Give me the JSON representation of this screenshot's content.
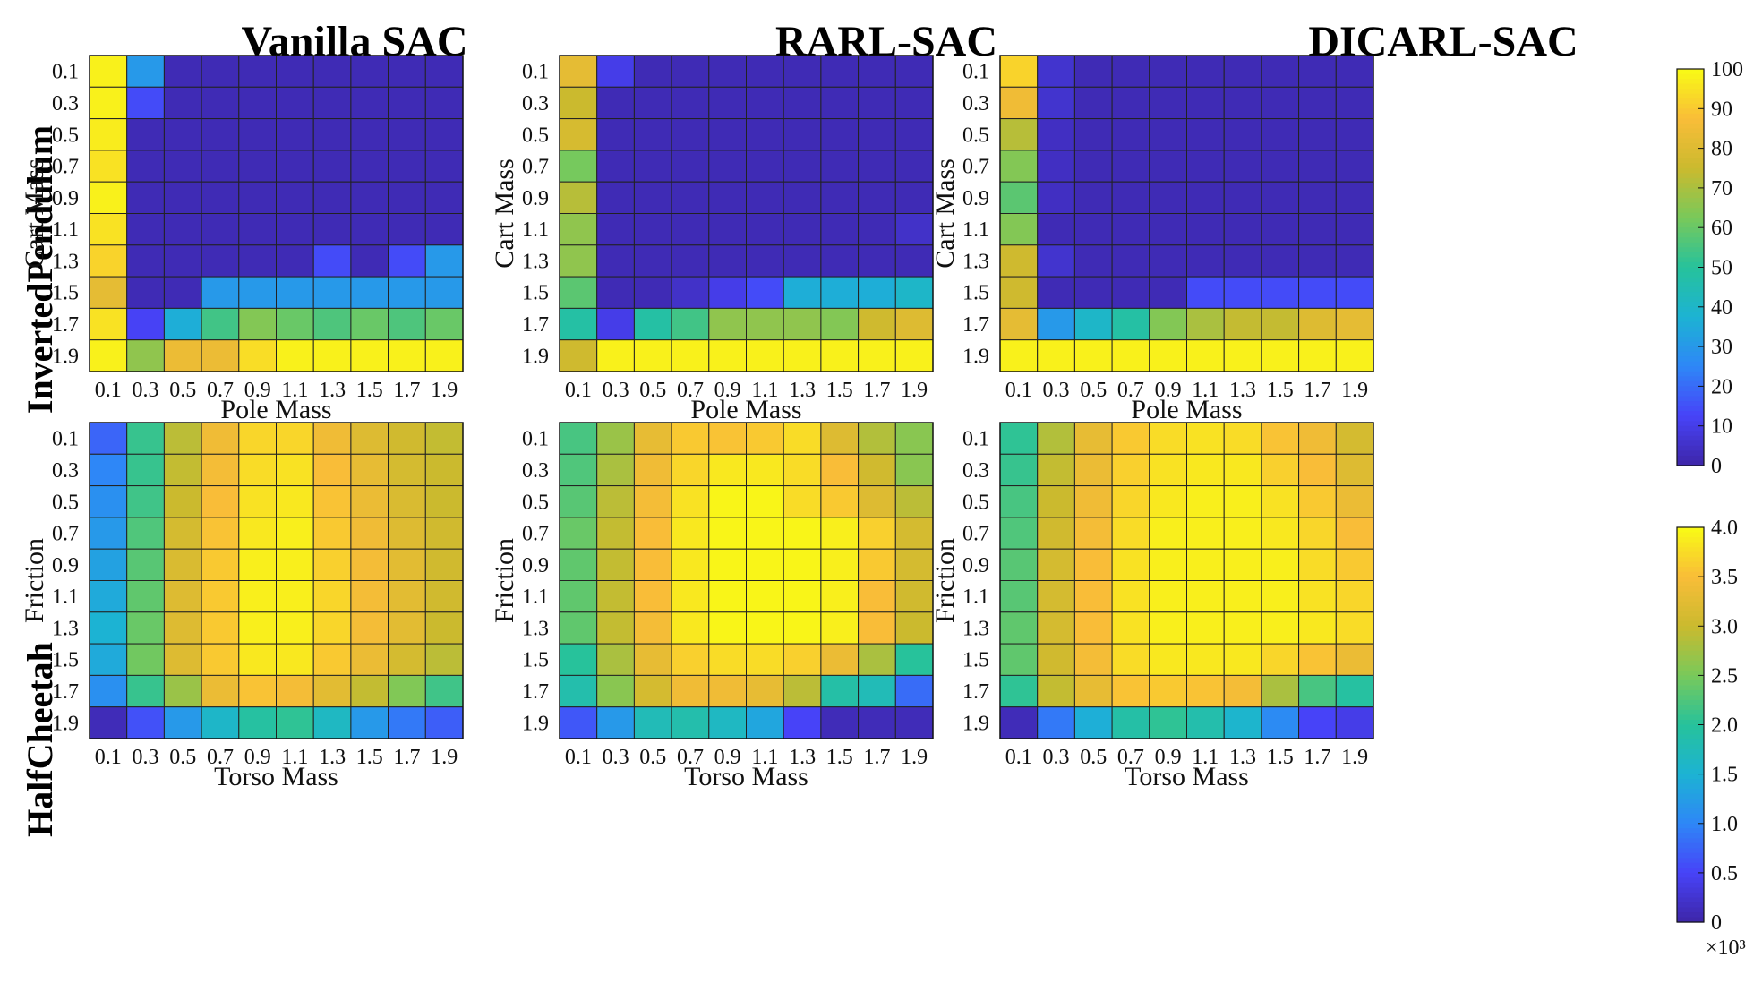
{
  "figure": {
    "row_labels": [
      "InvertedPendulum",
      "HalfCheetah"
    ],
    "column_titles": [
      "Vanilla SAC",
      "RARL-SAC",
      "DICARL-SAC"
    ]
  },
  "colormap": [
    "#3e26a8",
    "#4743f8",
    "#2e87f7",
    "#1cb3d3",
    "#27c29b",
    "#79c95a",
    "#cbba2e",
    "#f9bd38",
    "#f9fb15"
  ],
  "chart_data": [
    {
      "type": "heatmap",
      "row": "InvertedPendulum",
      "title": "Vanilla SAC",
      "x": [
        "0.1",
        "0.3",
        "0.5",
        "0.7",
        "0.9",
        "1.1",
        "1.3",
        "1.5",
        "1.7",
        "1.9"
      ],
      "y": [
        "0.1",
        "0.3",
        "0.5",
        "0.7",
        "0.9",
        "1.1",
        "1.3",
        "1.5",
        "1.7",
        "1.9"
      ],
      "xlabel": "Pole Mass",
      "ylabel": "Cart Mass",
      "clim": [
        0,
        100
      ],
      "z": [
        [
          98,
          30,
          2,
          2,
          2,
          2,
          2,
          2,
          2,
          2
        ],
        [
          98,
          14,
          2,
          2,
          2,
          2,
          2,
          2,
          2,
          2
        ],
        [
          97,
          2,
          2,
          2,
          2,
          2,
          2,
          2,
          2,
          2
        ],
        [
          95,
          2,
          2,
          2,
          2,
          2,
          2,
          2,
          2,
          2
        ],
        [
          98,
          2,
          2,
          2,
          2,
          2,
          2,
          2,
          2,
          2
        ],
        [
          95,
          2,
          2,
          2,
          2,
          2,
          2,
          2,
          2,
          2
        ],
        [
          92,
          2,
          2,
          2,
          2,
          2,
          14,
          2,
          14,
          30
        ],
        [
          82,
          2,
          2,
          30,
          30,
          30,
          30,
          30,
          30,
          30
        ],
        [
          95,
          12,
          36,
          54,
          64,
          60,
          56,
          60,
          56,
          60
        ],
        [
          98,
          66,
          84,
          84,
          94,
          98,
          98,
          98,
          98,
          98
        ]
      ]
    },
    {
      "type": "heatmap",
      "row": "InvertedPendulum",
      "title": "RARL-SAC",
      "x": [
        "0.1",
        "0.3",
        "0.5",
        "0.7",
        "0.9",
        "1.1",
        "1.3",
        "1.5",
        "1.7",
        "1.9"
      ],
      "y": [
        "0.1",
        "0.3",
        "0.5",
        "0.7",
        "0.9",
        "1.1",
        "1.3",
        "1.5",
        "1.7",
        "1.9"
      ],
      "xlabel": "Pole Mass",
      "ylabel": "Cart Mass",
      "clim": [
        0,
        100
      ],
      "z": [
        [
          82,
          10,
          2,
          2,
          2,
          2,
          2,
          2,
          2,
          2
        ],
        [
          75,
          2,
          2,
          2,
          2,
          2,
          2,
          2,
          2,
          2
        ],
        [
          78,
          2,
          2,
          2,
          2,
          2,
          2,
          2,
          2,
          2
        ],
        [
          62,
          2,
          2,
          2,
          2,
          2,
          2,
          2,
          2,
          2
        ],
        [
          72,
          2,
          2,
          2,
          2,
          2,
          2,
          2,
          2,
          2
        ],
        [
          66,
          2,
          2,
          2,
          2,
          2,
          2,
          2,
          2,
          5
        ],
        [
          66,
          2,
          2,
          2,
          2,
          2,
          2,
          2,
          2,
          2
        ],
        [
          58,
          2,
          2,
          5,
          10,
          14,
          36,
          36,
          36,
          40
        ],
        [
          48,
          10,
          48,
          54,
          66,
          66,
          66,
          64,
          76,
          80
        ],
        [
          76,
          98,
          98,
          98,
          98,
          98,
          98,
          98,
          98,
          98
        ]
      ]
    },
    {
      "type": "heatmap",
      "row": "InvertedPendulum",
      "title": "DICARL-SAC",
      "x": [
        "0.1",
        "0.3",
        "0.5",
        "0.7",
        "0.9",
        "1.1",
        "1.3",
        "1.5",
        "1.7",
        "1.9"
      ],
      "y": [
        "0.1",
        "0.3",
        "0.5",
        "0.7",
        "0.9",
        "1.1",
        "1.3",
        "1.5",
        "1.7",
        "1.9"
      ],
      "xlabel": "Pole Mass",
      "ylabel": "Cart Mass",
      "clim": [
        0,
        100
      ],
      "z": [
        [
          92,
          6,
          2,
          2,
          2,
          2,
          2,
          2,
          2,
          2
        ],
        [
          85,
          6,
          2,
          2,
          2,
          2,
          2,
          2,
          2,
          2
        ],
        [
          72,
          4,
          2,
          2,
          2,
          2,
          2,
          2,
          2,
          2
        ],
        [
          64,
          4,
          2,
          2,
          2,
          2,
          2,
          2,
          2,
          2
        ],
        [
          58,
          4,
          2,
          2,
          2,
          2,
          2,
          2,
          2,
          2
        ],
        [
          64,
          2,
          2,
          2,
          2,
          2,
          2,
          2,
          2,
          2
        ],
        [
          76,
          6,
          2,
          2,
          2,
          2,
          2,
          2,
          2,
          2
        ],
        [
          76,
          2,
          2,
          2,
          2,
          14,
          14,
          14,
          14,
          14
        ],
        [
          82,
          30,
          40,
          48,
          64,
          70,
          74,
          74,
          80,
          82
        ],
        [
          98,
          98,
          98,
          98,
          98,
          98,
          98,
          98,
          98,
          98
        ]
      ]
    },
    {
      "type": "heatmap",
      "row": "HalfCheetah",
      "title": "Vanilla SAC",
      "x": [
        "0.1",
        "0.3",
        "0.5",
        "0.7",
        "0.9",
        "1.1",
        "1.3",
        "1.5",
        "1.7",
        "1.9"
      ],
      "y": [
        "0.1",
        "0.3",
        "0.5",
        "0.7",
        "0.9",
        "1.1",
        "1.3",
        "1.5",
        "1.7",
        "1.9"
      ],
      "xlabel": "Torso Mass",
      "ylabel": "Friction",
      "clim": [
        0,
        4.0
      ],
      "scale": "×10³",
      "z": [
        [
          0.75,
          2.1,
          2.9,
          3.4,
          3.7,
          3.7,
          3.4,
          3.2,
          3.05,
          2.95
        ],
        [
          1.0,
          2.1,
          2.95,
          3.45,
          3.75,
          3.8,
          3.5,
          3.3,
          3.1,
          3.0
        ],
        [
          1.1,
          2.15,
          3.0,
          3.5,
          3.8,
          3.85,
          3.55,
          3.35,
          3.15,
          3.0
        ],
        [
          1.2,
          2.25,
          3.1,
          3.55,
          3.85,
          3.9,
          3.6,
          3.4,
          3.2,
          3.05
        ],
        [
          1.3,
          2.3,
          3.15,
          3.6,
          3.9,
          3.9,
          3.65,
          3.45,
          3.25,
          3.05
        ],
        [
          1.4,
          2.35,
          3.2,
          3.6,
          3.9,
          3.9,
          3.7,
          3.45,
          3.25,
          3.05
        ],
        [
          1.5,
          2.4,
          3.2,
          3.6,
          3.9,
          3.9,
          3.7,
          3.45,
          3.25,
          3.0
        ],
        [
          1.4,
          2.45,
          3.2,
          3.6,
          3.85,
          3.85,
          3.6,
          3.35,
          3.1,
          2.9
        ],
        [
          1.1,
          2.1,
          2.7,
          3.35,
          3.55,
          3.45,
          3.25,
          2.95,
          2.55,
          2.15
        ],
        [
          0.1,
          0.6,
          1.2,
          1.6,
          1.95,
          2.05,
          1.65,
          1.2,
          0.9,
          0.7
        ]
      ]
    },
    {
      "type": "heatmap",
      "row": "HalfCheetah",
      "title": "RARL-SAC",
      "x": [
        "0.1",
        "0.3",
        "0.5",
        "0.7",
        "0.9",
        "1.1",
        "1.3",
        "1.5",
        "1.7",
        "1.9"
      ],
      "y": [
        "0.1",
        "0.3",
        "0.5",
        "0.7",
        "0.9",
        "1.1",
        "1.3",
        "1.5",
        "1.7",
        "1.9"
      ],
      "xlabel": "Torso Mass",
      "ylabel": "Friction",
      "clim": [
        0,
        4.0
      ],
      "scale": "×10³",
      "z": [
        [
          2.2,
          2.7,
          3.3,
          3.6,
          3.55,
          3.6,
          3.75,
          3.2,
          2.85,
          2.6
        ],
        [
          2.25,
          2.8,
          3.4,
          3.7,
          3.85,
          3.85,
          3.75,
          3.5,
          3.05,
          2.6
        ],
        [
          2.3,
          2.9,
          3.45,
          3.8,
          3.95,
          3.95,
          3.75,
          3.6,
          3.2,
          2.9
        ],
        [
          2.4,
          2.95,
          3.5,
          3.85,
          3.95,
          3.95,
          3.95,
          3.9,
          3.65,
          3.1
        ],
        [
          2.35,
          2.95,
          3.5,
          3.85,
          3.95,
          3.95,
          3.95,
          3.9,
          3.6,
          3.1
        ],
        [
          2.35,
          2.95,
          3.5,
          3.85,
          3.95,
          3.95,
          3.95,
          3.9,
          3.5,
          3.05
        ],
        [
          2.35,
          2.95,
          3.45,
          3.85,
          3.95,
          3.95,
          3.95,
          3.9,
          3.5,
          3.0
        ],
        [
          2.0,
          2.8,
          3.3,
          3.65,
          3.75,
          3.75,
          3.65,
          3.35,
          2.8,
          2.0
        ],
        [
          1.85,
          2.6,
          3.1,
          3.4,
          3.4,
          3.3,
          2.9,
          1.9,
          1.75,
          0.8
        ],
        [
          0.65,
          1.2,
          1.75,
          1.85,
          1.65,
          1.35,
          0.5,
          0.1,
          0.1,
          0.1
        ]
      ]
    },
    {
      "type": "heatmap",
      "row": "HalfCheetah",
      "title": "DICARL-SAC",
      "x": [
        "0.1",
        "0.3",
        "0.5",
        "0.7",
        "0.9",
        "1.1",
        "1.3",
        "1.5",
        "1.7",
        "1.9"
      ],
      "y": [
        "0.1",
        "0.3",
        "0.5",
        "0.7",
        "0.9",
        "1.1",
        "1.3",
        "1.5",
        "1.7",
        "1.9"
      ],
      "xlabel": "Torso Mass",
      "ylabel": "Friction",
      "clim": [
        0,
        4.0
      ],
      "scale": "×10³",
      "z": [
        [
          2.05,
          2.85,
          3.3,
          3.6,
          3.75,
          3.8,
          3.75,
          3.55,
          3.4,
          3.1
        ],
        [
          2.1,
          2.95,
          3.35,
          3.65,
          3.8,
          3.85,
          3.85,
          3.65,
          3.5,
          3.2
        ],
        [
          2.2,
          3.0,
          3.4,
          3.7,
          3.85,
          3.9,
          3.9,
          3.8,
          3.6,
          3.35
        ],
        [
          2.25,
          3.05,
          3.45,
          3.75,
          3.9,
          3.9,
          3.9,
          3.85,
          3.7,
          3.5
        ],
        [
          2.3,
          3.1,
          3.5,
          3.8,
          3.9,
          3.9,
          3.9,
          3.9,
          3.75,
          3.6
        ],
        [
          2.3,
          3.1,
          3.5,
          3.8,
          3.9,
          3.9,
          3.9,
          3.9,
          3.8,
          3.7
        ],
        [
          2.35,
          3.1,
          3.5,
          3.8,
          3.9,
          3.9,
          3.9,
          3.9,
          3.85,
          3.75
        ],
        [
          2.35,
          3.05,
          3.45,
          3.75,
          3.85,
          3.85,
          3.85,
          3.7,
          3.55,
          3.35
        ],
        [
          2.05,
          2.95,
          3.3,
          3.55,
          3.6,
          3.55,
          3.45,
          2.8,
          2.2,
          1.95
        ],
        [
          0.1,
          0.9,
          1.45,
          1.9,
          2.05,
          1.85,
          1.55,
          1.05,
          0.5,
          0.4
        ]
      ]
    }
  ],
  "colorbars": [
    {
      "ticks": [
        "100",
        "90",
        "80",
        "70",
        "60",
        "50",
        "40",
        "30",
        "20",
        "10",
        "0"
      ],
      "range": [
        0,
        100
      ]
    },
    {
      "ticks": [
        "4.0",
        "3.5",
        "3.0",
        "2.5",
        "2.0",
        "1.5",
        "1.0",
        "0.5",
        "0"
      ],
      "range": [
        0,
        4.0
      ],
      "scale_label": "×10³"
    }
  ]
}
